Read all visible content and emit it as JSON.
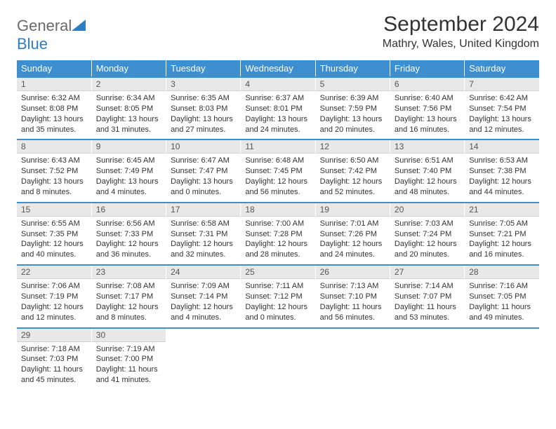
{
  "logo": {
    "part1": "General",
    "part2": "Blue"
  },
  "title": "September 2024",
  "location": "Mathry, Wales, United Kingdom",
  "colors": {
    "header_bg": "#3d8fcf",
    "header_text": "#ffffff",
    "daynum_bg": "#e8e8e8",
    "row_border": "#3d8fcf"
  },
  "day_headers": [
    "Sunday",
    "Monday",
    "Tuesday",
    "Wednesday",
    "Thursday",
    "Friday",
    "Saturday"
  ],
  "font": {
    "body_size": 11,
    "header_size": 13,
    "title_size": 30,
    "location_size": 16
  },
  "weeks": [
    [
      {
        "n": "1",
        "sr": "6:32 AM",
        "ss": "8:08 PM",
        "dl": "13 hours and 35 minutes."
      },
      {
        "n": "2",
        "sr": "6:34 AM",
        "ss": "8:05 PM",
        "dl": "13 hours and 31 minutes."
      },
      {
        "n": "3",
        "sr": "6:35 AM",
        "ss": "8:03 PM",
        "dl": "13 hours and 27 minutes."
      },
      {
        "n": "4",
        "sr": "6:37 AM",
        "ss": "8:01 PM",
        "dl": "13 hours and 24 minutes."
      },
      {
        "n": "5",
        "sr": "6:39 AM",
        "ss": "7:59 PM",
        "dl": "13 hours and 20 minutes."
      },
      {
        "n": "6",
        "sr": "6:40 AM",
        "ss": "7:56 PM",
        "dl": "13 hours and 16 minutes."
      },
      {
        "n": "7",
        "sr": "6:42 AM",
        "ss": "7:54 PM",
        "dl": "13 hours and 12 minutes."
      }
    ],
    [
      {
        "n": "8",
        "sr": "6:43 AM",
        "ss": "7:52 PM",
        "dl": "13 hours and 8 minutes."
      },
      {
        "n": "9",
        "sr": "6:45 AM",
        "ss": "7:49 PM",
        "dl": "13 hours and 4 minutes."
      },
      {
        "n": "10",
        "sr": "6:47 AM",
        "ss": "7:47 PM",
        "dl": "13 hours and 0 minutes."
      },
      {
        "n": "11",
        "sr": "6:48 AM",
        "ss": "7:45 PM",
        "dl": "12 hours and 56 minutes."
      },
      {
        "n": "12",
        "sr": "6:50 AM",
        "ss": "7:42 PM",
        "dl": "12 hours and 52 minutes."
      },
      {
        "n": "13",
        "sr": "6:51 AM",
        "ss": "7:40 PM",
        "dl": "12 hours and 48 minutes."
      },
      {
        "n": "14",
        "sr": "6:53 AM",
        "ss": "7:38 PM",
        "dl": "12 hours and 44 minutes."
      }
    ],
    [
      {
        "n": "15",
        "sr": "6:55 AM",
        "ss": "7:35 PM",
        "dl": "12 hours and 40 minutes."
      },
      {
        "n": "16",
        "sr": "6:56 AM",
        "ss": "7:33 PM",
        "dl": "12 hours and 36 minutes."
      },
      {
        "n": "17",
        "sr": "6:58 AM",
        "ss": "7:31 PM",
        "dl": "12 hours and 32 minutes."
      },
      {
        "n": "18",
        "sr": "7:00 AM",
        "ss": "7:28 PM",
        "dl": "12 hours and 28 minutes."
      },
      {
        "n": "19",
        "sr": "7:01 AM",
        "ss": "7:26 PM",
        "dl": "12 hours and 24 minutes."
      },
      {
        "n": "20",
        "sr": "7:03 AM",
        "ss": "7:24 PM",
        "dl": "12 hours and 20 minutes."
      },
      {
        "n": "21",
        "sr": "7:05 AM",
        "ss": "7:21 PM",
        "dl": "12 hours and 16 minutes."
      }
    ],
    [
      {
        "n": "22",
        "sr": "7:06 AM",
        "ss": "7:19 PM",
        "dl": "12 hours and 12 minutes."
      },
      {
        "n": "23",
        "sr": "7:08 AM",
        "ss": "7:17 PM",
        "dl": "12 hours and 8 minutes."
      },
      {
        "n": "24",
        "sr": "7:09 AM",
        "ss": "7:14 PM",
        "dl": "12 hours and 4 minutes."
      },
      {
        "n": "25",
        "sr": "7:11 AM",
        "ss": "7:12 PM",
        "dl": "12 hours and 0 minutes."
      },
      {
        "n": "26",
        "sr": "7:13 AM",
        "ss": "7:10 PM",
        "dl": "11 hours and 56 minutes."
      },
      {
        "n": "27",
        "sr": "7:14 AM",
        "ss": "7:07 PM",
        "dl": "11 hours and 53 minutes."
      },
      {
        "n": "28",
        "sr": "7:16 AM",
        "ss": "7:05 PM",
        "dl": "11 hours and 49 minutes."
      }
    ],
    [
      {
        "n": "29",
        "sr": "7:18 AM",
        "ss": "7:03 PM",
        "dl": "11 hours and 45 minutes."
      },
      {
        "n": "30",
        "sr": "7:19 AM",
        "ss": "7:00 PM",
        "dl": "11 hours and 41 minutes."
      },
      null,
      null,
      null,
      null,
      null
    ]
  ],
  "labels": {
    "sunrise": "Sunrise: ",
    "sunset": "Sunset: ",
    "daylight": "Daylight: "
  }
}
